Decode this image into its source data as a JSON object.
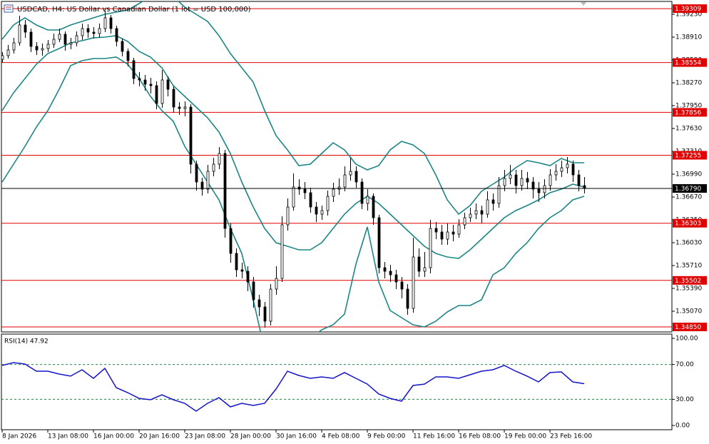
{
  "chart_data": [
    {
      "type": "candlestick",
      "title": "USDCAD, H4: US Dollar vs Canadian Dollar (1 lot = USD 100,000)",
      "open": [
        1.386,
        1.3865,
        1.3873,
        1.3883,
        1.3908,
        1.3898,
        1.3878,
        1.3873,
        1.3875,
        1.3881,
        1.3888,
        1.3895,
        1.3881,
        1.3883,
        1.3893,
        1.3903,
        1.3898,
        1.3896,
        1.3903,
        1.3918,
        1.3903,
        1.3885,
        1.3871,
        1.3858,
        1.3833,
        1.3831,
        1.3825,
        1.3823,
        1.3798,
        1.3831,
        1.3818,
        1.3793,
        1.3791,
        1.3793,
        1.3713,
        1.3688,
        1.3678,
        1.3703,
        1.3713,
        1.3728,
        1.3623,
        1.3588,
        1.3565,
        1.3563,
        1.3548,
        1.3523,
        1.3513,
        1.3493,
        1.3538,
        1.3553,
        1.3628,
        1.3653,
        1.3681,
        1.3678,
        1.3673,
        1.3653,
        1.3643,
        1.3648,
        1.3668,
        1.3678,
        1.3681,
        1.3698,
        1.3703,
        1.3688,
        1.3658,
        1.3668,
        1.3638,
        1.3568,
        1.3563,
        1.3558,
        1.3548,
        1.3538,
        1.3511,
        1.3583,
        1.3563,
        1.3568,
        1.3623,
        1.3618,
        1.3608,
        1.3618,
        1.3615,
        1.3628,
        1.3638,
        1.3643,
        1.3648,
        1.3643,
        1.3663,
        1.3658,
        1.3683,
        1.3693,
        1.3698,
        1.3683,
        1.3693,
        1.3688,
        1.3678,
        1.3673,
        1.3683,
        1.3698,
        1.3703,
        1.3708,
        1.3713,
        1.3698,
        1.3683
      ],
      "high": [
        1.387,
        1.388,
        1.389,
        1.3921,
        1.3915,
        1.3903,
        1.3884,
        1.3882,
        1.3887,
        1.3896,
        1.3903,
        1.3899,
        1.389,
        1.3899,
        1.391,
        1.3909,
        1.3905,
        1.391,
        1.3928,
        1.3922,
        1.3907,
        1.3889,
        1.3875,
        1.3862,
        1.3842,
        1.3838,
        1.3834,
        1.3829,
        1.3845,
        1.3836,
        1.3822,
        1.38,
        1.3801,
        1.3797,
        1.3718,
        1.3694,
        1.3712,
        1.3722,
        1.3737,
        1.3733,
        1.363,
        1.3595,
        1.3575,
        1.357,
        1.3555,
        1.353,
        1.352,
        1.3545,
        1.357,
        1.364,
        1.3665,
        1.37,
        1.3692,
        1.3688,
        1.368,
        1.366,
        1.3655,
        1.3676,
        1.3687,
        1.3693,
        1.371,
        1.3722,
        1.371,
        1.3693,
        1.3678,
        1.3672,
        1.3642,
        1.3576,
        1.3572,
        1.3565,
        1.3555,
        1.3545,
        1.361,
        1.3595,
        1.359,
        1.3635,
        1.3632,
        1.3628,
        1.363,
        1.3628,
        1.3636,
        1.3645,
        1.3652,
        1.3658,
        1.3655,
        1.3675,
        1.3672,
        1.3695,
        1.3705,
        1.3712,
        1.3705,
        1.3705,
        1.3702,
        1.3695,
        1.3688,
        1.3692,
        1.3706,
        1.3713,
        1.3718,
        1.3723,
        1.3718,
        1.3705,
        1.3695
      ],
      "low": [
        1.3855,
        1.3861,
        1.3868,
        1.3879,
        1.389,
        1.387,
        1.3866,
        1.3865,
        1.387,
        1.3876,
        1.3884,
        1.3872,
        1.3874,
        1.3878,
        1.3887,
        1.389,
        1.3889,
        1.389,
        1.3898,
        1.3896,
        1.3878,
        1.3864,
        1.385,
        1.3825,
        1.3822,
        1.3816,
        1.3812,
        1.379,
        1.3792,
        1.3808,
        1.3785,
        1.3782,
        1.378,
        1.37,
        1.3676,
        1.3669,
        1.3672,
        1.3696,
        1.3706,
        1.361,
        1.3575,
        1.3555,
        1.3553,
        1.3535,
        1.3512,
        1.35,
        1.3484,
        1.3487,
        1.353,
        1.3548,
        1.362,
        1.3648,
        1.367,
        1.3664,
        1.3645,
        1.3632,
        1.3635,
        1.3641,
        1.366,
        1.367,
        1.3675,
        1.369,
        1.368,
        1.365,
        1.3648,
        1.3628,
        1.356,
        1.3553,
        1.3548,
        1.3538,
        1.3525,
        1.3502,
        1.3505,
        1.3555,
        1.3555,
        1.356,
        1.3608,
        1.36,
        1.36,
        1.3605,
        1.361,
        1.3622,
        1.3632,
        1.3636,
        1.363,
        1.3638,
        1.3648,
        1.3652,
        1.3675,
        1.3685,
        1.3672,
        1.3676,
        1.3678,
        1.3665,
        1.366,
        1.3665,
        1.3676,
        1.369,
        1.3695,
        1.37,
        1.3688,
        1.3675,
        1.3672
      ],
      "close": [
        1.3865,
        1.3873,
        1.3883,
        1.3908,
        1.3898,
        1.3878,
        1.3873,
        1.3875,
        1.3881,
        1.3888,
        1.3895,
        1.3881,
        1.3883,
        1.3893,
        1.3903,
        1.3898,
        1.3896,
        1.3903,
        1.3918,
        1.3903,
        1.3885,
        1.3871,
        1.3858,
        1.3833,
        1.3831,
        1.3825,
        1.3823,
        1.3798,
        1.3831,
        1.3818,
        1.3793,
        1.3791,
        1.3793,
        1.3713,
        1.3688,
        1.3678,
        1.3703,
        1.3713,
        1.3728,
        1.3623,
        1.3588,
        1.3565,
        1.3563,
        1.3548,
        1.3523,
        1.3513,
        1.3493,
        1.3538,
        1.3553,
        1.3628,
        1.3653,
        1.3681,
        1.3678,
        1.3673,
        1.3653,
        1.3643,
        1.3648,
        1.3668,
        1.3678,
        1.3681,
        1.3698,
        1.3703,
        1.3688,
        1.3658,
        1.3668,
        1.3638,
        1.3568,
        1.3563,
        1.3558,
        1.3548,
        1.3538,
        1.3511,
        1.3583,
        1.3563,
        1.3568,
        1.3623,
        1.3618,
        1.3608,
        1.3618,
        1.3615,
        1.3628,
        1.3638,
        1.3643,
        1.3648,
        1.3643,
        1.3663,
        1.3658,
        1.3683,
        1.3693,
        1.3698,
        1.3683,
        1.3693,
        1.3688,
        1.3678,
        1.3673,
        1.3683,
        1.3698,
        1.3703,
        1.3708,
        1.3713,
        1.3698,
        1.3683,
        1.3679
      ],
      "up_color": "#ffffff",
      "down_color": "#000000",
      "wick_color": "#000000",
      "bands": [
        {
          "color": "#1c8585",
          "x": [
            0,
            2,
            4,
            6,
            8,
            10,
            12,
            14,
            16,
            18,
            20,
            22,
            24,
            26,
            28,
            30,
            32,
            34,
            36,
            38,
            40,
            42,
            44,
            46,
            48,
            50,
            52,
            54,
            56,
            58,
            60,
            62,
            64,
            66,
            68,
            70,
            72,
            74,
            76,
            78,
            80,
            82,
            84,
            86,
            88,
            90,
            92,
            94,
            96,
            98,
            100,
            102
          ],
          "values": [
            1.3888,
            1.3908,
            1.3918,
            1.3908,
            1.3901,
            1.3901,
            1.3908,
            1.3913,
            1.3918,
            1.3923,
            1.3926,
            1.3929,
            1.3938,
            1.3948,
            1.3951,
            1.3948,
            1.3933,
            1.3923,
            1.3913,
            1.3893,
            1.3868,
            1.3848,
            1.3828,
            1.3788,
            1.3753,
            1.3733,
            1.3711,
            1.3713,
            1.3728,
            1.3743,
            1.3733,
            1.3713,
            1.3705,
            1.3711,
            1.3733,
            1.3745,
            1.374,
            1.3728,
            1.3698,
            1.3663,
            1.3643,
            1.3655,
            1.3675,
            1.3685,
            1.3695,
            1.3708,
            1.3718,
            1.3715,
            1.3711,
            1.3721,
            1.3715,
            1.3715
          ]
        },
        {
          "color": "#1c8585",
          "x": [
            0,
            2,
            4,
            6,
            8,
            10,
            12,
            14,
            16,
            18,
            20,
            22,
            24,
            26,
            28,
            30,
            32,
            34,
            36,
            38,
            40,
            42,
            44,
            46,
            48,
            50,
            52,
            54,
            56,
            58,
            60,
            62,
            64,
            66,
            68,
            70,
            72,
            74,
            76,
            78,
            80,
            82,
            84,
            86,
            88,
            90,
            92,
            94,
            96,
            98,
            100,
            102
          ],
          "values": [
            1.3788,
            1.3813,
            1.3833,
            1.3853,
            1.3868,
            1.3875,
            1.3883,
            1.3886,
            1.389,
            1.3891,
            1.3893,
            1.3885,
            1.3871,
            1.3863,
            1.3848,
            1.3823,
            1.3808,
            1.3793,
            1.3778,
            1.3758,
            1.3728,
            1.3688,
            1.3653,
            1.3623,
            1.3603,
            1.3598,
            1.3593,
            1.3593,
            1.3603,
            1.3623,
            1.3643,
            1.3658,
            1.3668,
            1.3658,
            1.3643,
            1.3628,
            1.3613,
            1.3598,
            1.3588,
            1.3583,
            1.3581,
            1.3593,
            1.3608,
            1.3623,
            1.3638,
            1.3648,
            1.3655,
            1.3663,
            1.3673,
            1.3678,
            1.3685,
            1.3681
          ]
        },
        {
          "color": "#1c8585",
          "x": [
            0,
            2,
            4,
            6,
            8,
            10,
            12,
            14,
            16,
            18,
            20,
            22,
            24,
            26,
            28,
            30,
            32,
            34,
            36,
            38,
            40,
            42,
            44,
            46,
            48,
            50,
            52,
            54,
            56,
            58,
            60,
            62,
            64,
            66,
            68,
            70,
            72,
            74,
            76,
            78,
            80,
            82,
            84,
            86,
            88,
            90,
            92,
            94,
            96,
            98,
            100,
            102
          ],
          "values": [
            1.3688,
            1.3713,
            1.3738,
            1.3765,
            1.3788,
            1.3818,
            1.3851,
            1.3858,
            1.3861,
            1.3861,
            1.3863,
            1.3853,
            1.3833,
            1.3808,
            1.3788,
            1.3773,
            1.3738,
            1.3713,
            1.3688,
            1.3663,
            1.3623,
            1.3588,
            1.3523,
            1.3453,
            1.3433,
            1.3433,
            1.3448,
            1.3468,
            1.3481,
            1.3488,
            1.3503,
            1.3573,
            1.3625,
            1.3548,
            1.3508,
            1.3498,
            1.3488,
            1.3485,
            1.3493,
            1.3506,
            1.3515,
            1.3515,
            1.3523,
            1.3558,
            1.3568,
            1.3588,
            1.3603,
            1.3623,
            1.3638,
            1.3648,
            1.3663,
            1.3668
          ]
        }
      ],
      "ylim": [
        1.3478,
        1.3941
      ],
      "yticks": [
        {
          "value": 1.3923,
          "label": "1.39230"
        },
        {
          "value": 1.3891,
          "label": "1.38910"
        },
        {
          "value": 1.3859,
          "label": "1.38590"
        },
        {
          "value": 1.3827,
          "label": "1.38270"
        },
        {
          "value": 1.3795,
          "label": "1.37950"
        },
        {
          "value": 1.3763,
          "label": "1.37630"
        },
        {
          "value": 1.3731,
          "label": "1.37310"
        },
        {
          "value": 1.3699,
          "label": "1.36990"
        },
        {
          "value": 1.3667,
          "label": "1.36670"
        },
        {
          "value": 1.3635,
          "label": "1.36350"
        },
        {
          "value": 1.3603,
          "label": "1.36030"
        },
        {
          "value": 1.3571,
          "label": "1.35710"
        },
        {
          "value": 1.3539,
          "label": "1.35390"
        },
        {
          "value": 1.3507,
          "label": "1.35070"
        }
      ],
      "levels": [
        1.39309,
        1.38554,
        1.37856,
        1.37255,
        1.36303,
        1.35502,
        {
          "value": 1.3485,
          "label": "1.34850"
        }
      ],
      "level_color": "#e00000",
      "current_price": {
        "value": 1.3679,
        "label": "1.36790"
      },
      "current_color": "#000000"
    },
    {
      "type": "line",
      "title": "RSI(14) 47.92",
      "x": [
        0,
        2,
        4,
        6,
        8,
        10,
        12,
        14,
        16,
        18,
        20,
        22,
        24,
        26,
        28,
        30,
        32,
        34,
        36,
        38,
        40,
        42,
        44,
        46,
        48,
        50,
        52,
        54,
        56,
        58,
        60,
        62,
        64,
        66,
        68,
        70,
        72,
        74,
        76,
        78,
        80,
        82,
        84,
        86,
        88,
        90,
        92,
        94,
        96,
        98,
        100,
        102
      ],
      "values": [
        68.9,
        72.1,
        70.5,
        62.3,
        62.3,
        59.0,
        56.6,
        63.9,
        54.1,
        65.6,
        43.4,
        37.7,
        31.1,
        29.5,
        35.2,
        29.5,
        25.4,
        16.4,
        25.4,
        32.0,
        21.3,
        25.4,
        23.0,
        25.4,
        41.8,
        62.3,
        57.4,
        54.1,
        55.7,
        54.1,
        60.7,
        54.1,
        47.5,
        36.1,
        31.1,
        27.9,
        45.9,
        47.5,
        55.7,
        55.7,
        54.1,
        58.2,
        62.3,
        63.9,
        68.9,
        62.3,
        56.6,
        50.0,
        60.7,
        61.5,
        50.0,
        47.92
      ],
      "color": "#1414c8",
      "ylim": [
        -4.9,
        104.9
      ],
      "yticks": [
        {
          "value": 100,
          "label": "100.00"
        },
        {
          "value": 70,
          "label": "70.00"
        },
        {
          "value": 30,
          "label": "30.00"
        },
        {
          "value": 0,
          "label": "0.00"
        }
      ],
      "levels": [
        70,
        30
      ],
      "level_color": "#2f7d4a",
      "xlim": [
        -0.125,
        117.375
      ],
      "xticks": [
        {
          "value": 0,
          "label": "8 Jan 2026"
        },
        {
          "value": 8,
          "label": "13 Jan 08:00"
        },
        {
          "value": 16,
          "label": "16 Jan 00:00"
        },
        {
          "value": 24,
          "label": "20 Jan 16:00"
        },
        {
          "value": 32,
          "label": "23 Jan 08:00"
        },
        {
          "value": 40,
          "label": "28 Jan 00:00"
        },
        {
          "value": 48,
          "label": "30 Jan 16:00"
        },
        {
          "value": 56,
          "label": "4 Feb 08:00"
        },
        {
          "value": 64,
          "label": "9 Feb 00:00"
        },
        {
          "value": 72,
          "label": "11 Feb 16:00"
        },
        {
          "value": 80,
          "label": "16 Feb 08:00"
        },
        {
          "value": 88,
          "label": "19 Feb 00:00"
        },
        {
          "value": 96,
          "label": "23 Feb 16:00"
        }
      ]
    }
  ]
}
